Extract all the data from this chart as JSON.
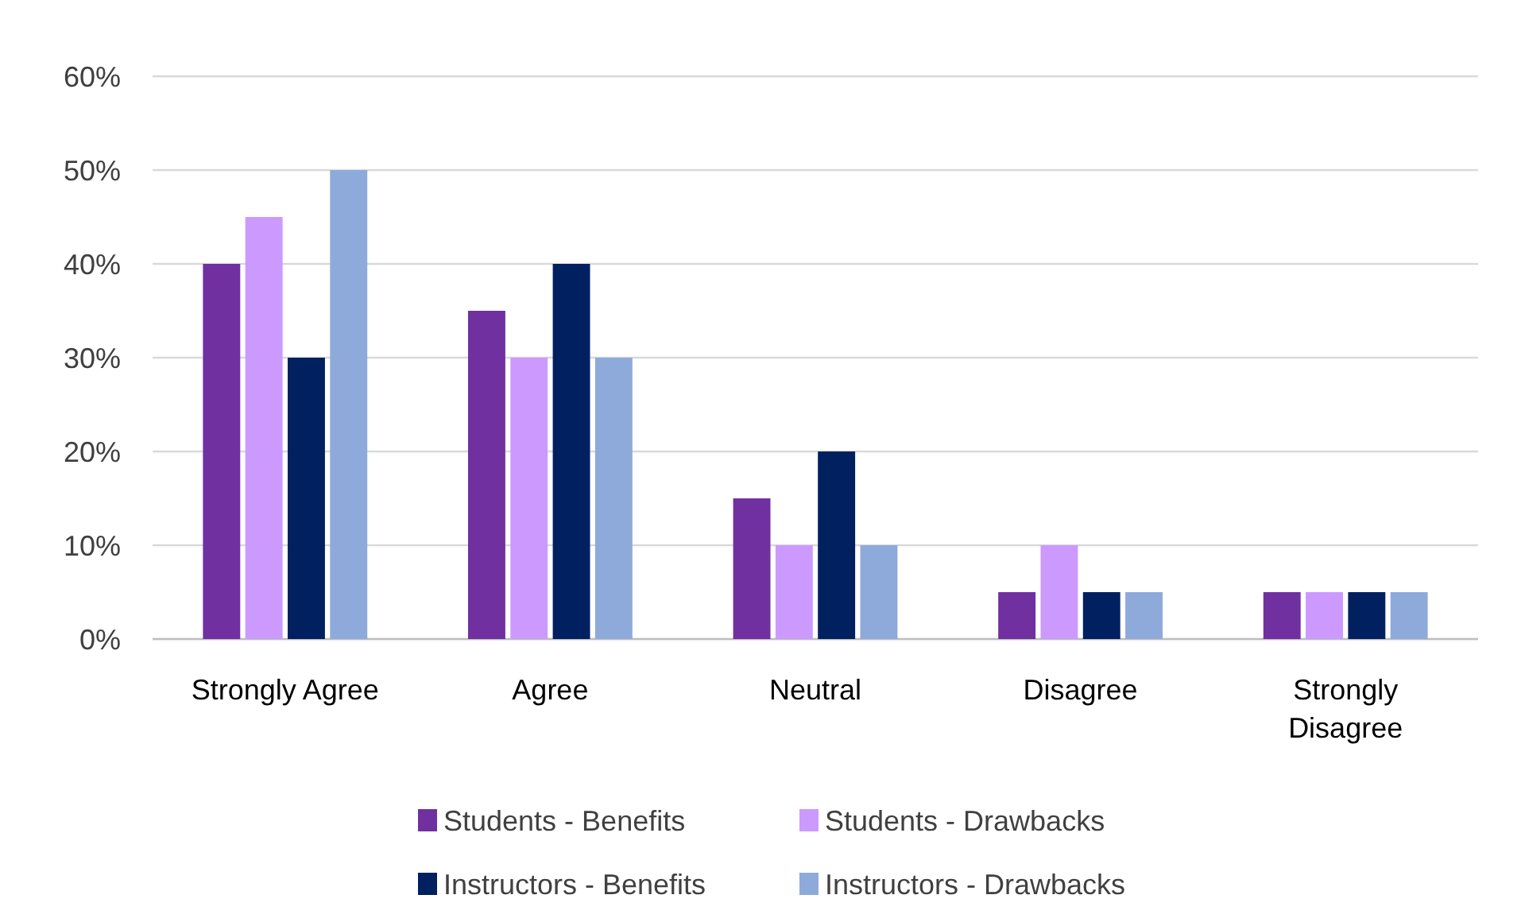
{
  "chart_data": {
    "type": "bar",
    "categories": [
      "Strongly Agree",
      "Agree",
      "Neutral",
      "Disagree",
      "Strongly Disagree"
    ],
    "series": [
      {
        "name": "Students - Benefits",
        "color": "#7030a0",
        "values": [
          40,
          35,
          15,
          5,
          5
        ]
      },
      {
        "name": "Students - Drawbacks",
        "color": "#cc99ff",
        "values": [
          45,
          30,
          10,
          10,
          5
        ]
      },
      {
        "name": "Instructors - Benefits",
        "color": "#002060",
        "values": [
          30,
          40,
          20,
          5,
          5
        ]
      },
      {
        "name": "Instructors - Drawbacks",
        "color": "#8eaadb",
        "values": [
          50,
          30,
          10,
          5,
          5
        ]
      }
    ],
    "ylim": [
      0,
      60
    ],
    "yticks": [
      {
        "value": 0,
        "label": "0%"
      },
      {
        "value": 10,
        "label": "10%"
      },
      {
        "value": 20,
        "label": "20%"
      },
      {
        "value": 30,
        "label": "30%"
      },
      {
        "value": 40,
        "label": "40%"
      },
      {
        "value": 50,
        "label": "50%"
      },
      {
        "value": 60,
        "label": "60%"
      }
    ],
    "grid": "y",
    "legend": "bottom"
  }
}
